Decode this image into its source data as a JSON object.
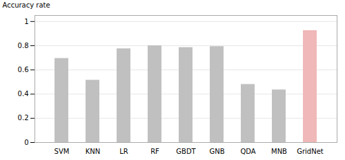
{
  "chart_data": {
    "type": "bar",
    "categories": [
      "SVM",
      "KNN",
      "LR",
      "RF",
      "GBDT",
      "GNB",
      "QDA",
      "MNB",
      "GridNet"
    ],
    "values": [
      0.695,
      0.515,
      0.775,
      0.8,
      0.785,
      0.793,
      0.48,
      0.435,
      0.925
    ],
    "colors": [
      "#c0c0c0",
      "#c0c0c0",
      "#c0c0c0",
      "#c0c0c0",
      "#c0c0c0",
      "#c0c0c0",
      "#c0c0c0",
      "#c0c0c0",
      "#f0b8b8"
    ],
    "ylabel": "Accuracy rate",
    "ylim": [
      0,
      1.05
    ],
    "yticks": [
      0,
      0.2,
      0.4,
      0.6,
      0.8,
      1
    ],
    "grid": true
  }
}
